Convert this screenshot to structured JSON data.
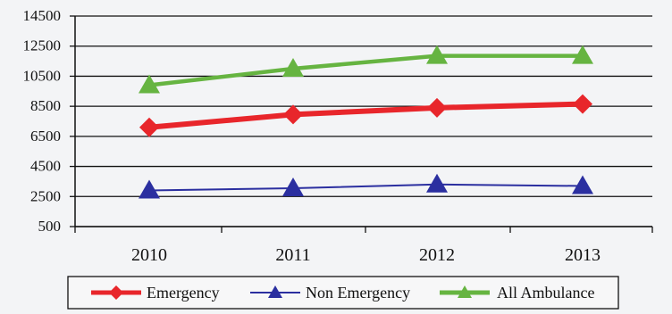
{
  "chart_data": {
    "type": "line",
    "categories": [
      "2010",
      "2011",
      "2012",
      "2013"
    ],
    "ylim": [
      500,
      14500
    ],
    "yticks": [
      500,
      2500,
      4500,
      6500,
      8500,
      10500,
      12500,
      14500
    ],
    "ytick_labels": [
      "500",
      "2500",
      "4500",
      "6500",
      "8500",
      "10500",
      "12500",
      "14500"
    ],
    "grid": "horizontal",
    "legend_position": "bottom",
    "title": "",
    "xlabel": "",
    "ylabel": "",
    "series": [
      {
        "name": "Emergency",
        "values": [
          7100,
          7950,
          8400,
          8650
        ],
        "color": "#e8262b",
        "marker": "diamond"
      },
      {
        "name": "Non Emergency",
        "values": [
          2900,
          3050,
          3300,
          3200
        ],
        "color": "#2b2fa0",
        "marker": "triangle"
      },
      {
        "name": "All Ambulance",
        "values": [
          9900,
          11000,
          11850,
          11850
        ],
        "color": "#66b441",
        "marker": "triangle"
      }
    ]
  }
}
